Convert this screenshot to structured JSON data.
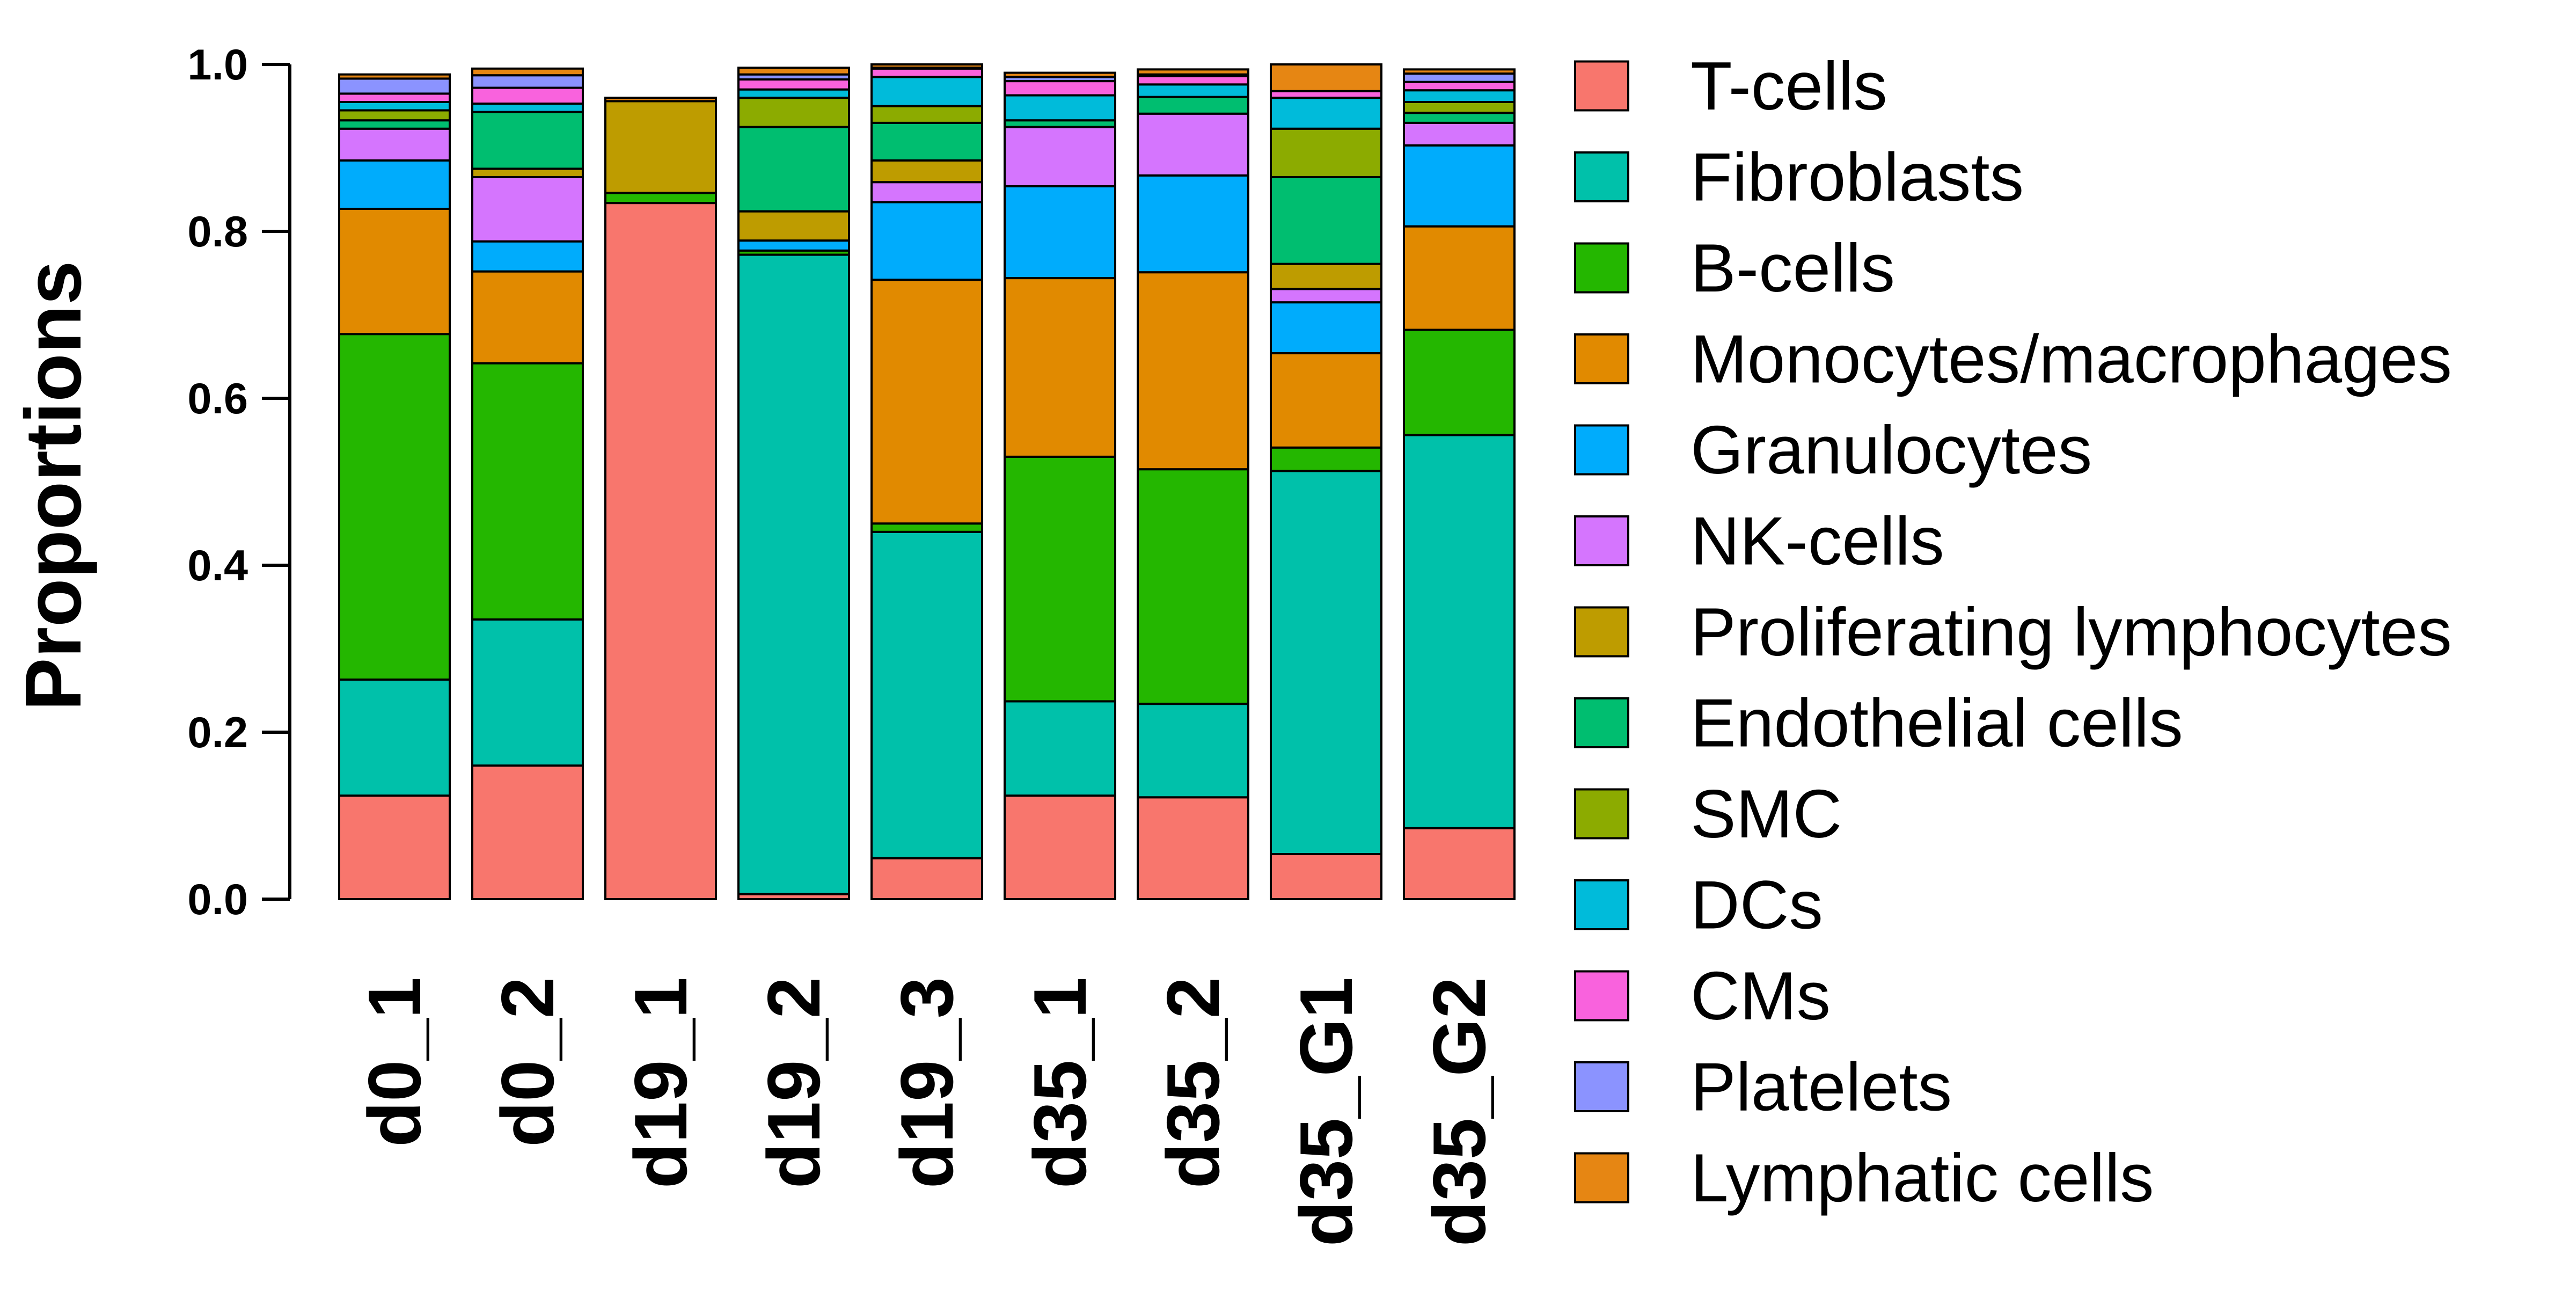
{
  "chart_data": {
    "type": "bar",
    "stacked": true,
    "ylabel": "Proportions",
    "xlabel": "",
    "ylim": [
      0,
      1.0
    ],
    "yticks": [
      "0.0",
      "0.2",
      "0.4",
      "0.6",
      "0.8",
      "1.0"
    ],
    "legend_position": "right",
    "categories": [
      "d0_1",
      "d0_2",
      "d19_1",
      "d19_2",
      "d19_3",
      "d35_1",
      "d35_2",
      "d35_G1",
      "d35_G2"
    ],
    "series": [
      {
        "name": "T-cells",
        "color": "#F8766D",
        "values": [
          0.124,
          0.16,
          0.834,
          0.006,
          0.049,
          0.124,
          0.122,
          0.054,
          0.085
        ]
      },
      {
        "name": "Fibroblasts",
        "color": "#00C1AA",
        "values": [
          0.139,
          0.175,
          0.0,
          0.766,
          0.391,
          0.113,
          0.112,
          0.459,
          0.471
        ]
      },
      {
        "name": "B-cells",
        "color": "#24B700",
        "values": [
          0.414,
          0.307,
          0.012,
          0.005,
          0.01,
          0.293,
          0.281,
          0.028,
          0.126
        ]
      },
      {
        "name": "Monocytes/macrophages",
        "color": "#E18A00",
        "values": [
          0.15,
          0.11,
          0.0,
          0.0,
          0.292,
          0.214,
          0.236,
          0.113,
          0.124
        ]
      },
      {
        "name": "Granulocytes",
        "color": "#00ACFC",
        "values": [
          0.058,
          0.036,
          0.0,
          0.012,
          0.093,
          0.11,
          0.116,
          0.061,
          0.097
        ]
      },
      {
        "name": "NK-cells",
        "color": "#D575FE",
        "values": [
          0.038,
          0.077,
          0.0,
          0.0,
          0.024,
          0.071,
          0.074,
          0.016,
          0.027
        ]
      },
      {
        "name": "Proliferating lymphocytes",
        "color": "#BE9C00",
        "values": [
          0.0,
          0.01,
          0.11,
          0.035,
          0.026,
          0.0,
          0.0,
          0.03,
          0.0
        ]
      },
      {
        "name": "Endothelial cells",
        "color": "#00BE70",
        "values": [
          0.01,
          0.068,
          0.0,
          0.101,
          0.045,
          0.008,
          0.02,
          0.104,
          0.012
        ]
      },
      {
        "name": "SMC",
        "color": "#8CAB00",
        "values": [
          0.012,
          0.0,
          0.0,
          0.035,
          0.02,
          0.0,
          0.0,
          0.058,
          0.013
        ]
      },
      {
        "name": "DCs",
        "color": "#00BBDA",
        "values": [
          0.01,
          0.01,
          0.0,
          0.01,
          0.035,
          0.03,
          0.015,
          0.037,
          0.014
        ]
      },
      {
        "name": "CMs",
        "color": "#F962DD",
        "values": [
          0.01,
          0.019,
          0.0,
          0.012,
          0.01,
          0.017,
          0.01,
          0.008,
          0.01
        ]
      },
      {
        "name": "Platelets",
        "color": "#8B93FF",
        "values": [
          0.018,
          0.015,
          0.0,
          0.006,
          0.001,
          0.005,
          0.002,
          0.0,
          0.01
        ]
      },
      {
        "name": "Lymphatic cells",
        "color": "#E68613",
        "values": [
          0.005,
          0.008,
          0.004,
          0.008,
          0.004,
          0.005,
          0.006,
          0.032,
          0.005
        ]
      }
    ]
  }
}
